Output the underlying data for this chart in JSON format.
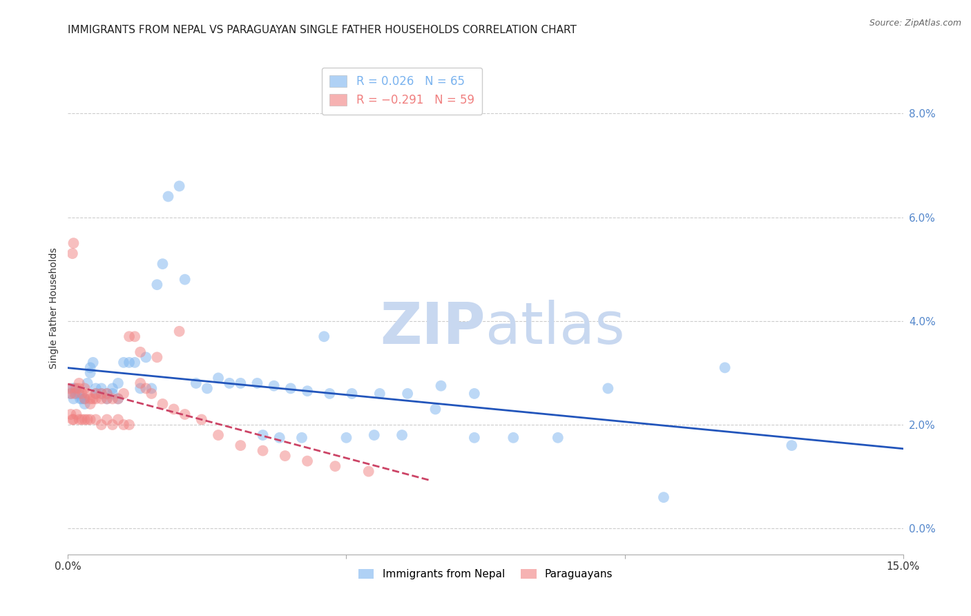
{
  "title": "IMMIGRANTS FROM NEPAL VS PARAGUAYAN SINGLE FATHER HOUSEHOLDS CORRELATION CHART",
  "source": "Source: ZipAtlas.com",
  "ylabel": "Single Father Households",
  "xlim": [
    0.0,
    0.15
  ],
  "ylim": [
    -0.005,
    0.09
  ],
  "yticks": [
    0.0,
    0.02,
    0.04,
    0.06,
    0.08
  ],
  "nepal_color": "#7ab3ef",
  "paraguay_color": "#f08080",
  "nepal_R": 0.026,
  "nepal_N": 65,
  "paraguay_R": -0.291,
  "paraguay_N": 59,
  "nepal_x": [
    0.0005,
    0.0008,
    0.001,
    0.0012,
    0.0015,
    0.002,
    0.0022,
    0.0025,
    0.003,
    0.003,
    0.0035,
    0.004,
    0.004,
    0.0045,
    0.005,
    0.005,
    0.006,
    0.006,
    0.007,
    0.007,
    0.008,
    0.008,
    0.009,
    0.009,
    0.01,
    0.011,
    0.012,
    0.013,
    0.014,
    0.015,
    0.016,
    0.017,
    0.018,
    0.02,
    0.021,
    0.023,
    0.025,
    0.027,
    0.029,
    0.031,
    0.034,
    0.037,
    0.04,
    0.043,
    0.047,
    0.051,
    0.056,
    0.061,
    0.067,
    0.073,
    0.035,
    0.038,
    0.042,
    0.046,
    0.05,
    0.055,
    0.06,
    0.066,
    0.073,
    0.08,
    0.088,
    0.097,
    0.107,
    0.118,
    0.13
  ],
  "nepal_y": [
    0.026,
    0.027,
    0.025,
    0.027,
    0.026,
    0.026,
    0.025,
    0.025,
    0.025,
    0.024,
    0.028,
    0.03,
    0.031,
    0.032,
    0.027,
    0.026,
    0.027,
    0.026,
    0.026,
    0.025,
    0.027,
    0.026,
    0.028,
    0.025,
    0.032,
    0.032,
    0.032,
    0.027,
    0.033,
    0.027,
    0.047,
    0.051,
    0.064,
    0.066,
    0.048,
    0.028,
    0.027,
    0.029,
    0.028,
    0.028,
    0.028,
    0.0275,
    0.027,
    0.0265,
    0.026,
    0.026,
    0.026,
    0.026,
    0.0275,
    0.026,
    0.018,
    0.0175,
    0.0175,
    0.037,
    0.0175,
    0.018,
    0.018,
    0.023,
    0.0175,
    0.0175,
    0.0175,
    0.027,
    0.006,
    0.031,
    0.016
  ],
  "paraguay_x": [
    0.0003,
    0.0005,
    0.0008,
    0.001,
    0.0012,
    0.0015,
    0.002,
    0.002,
    0.0025,
    0.003,
    0.003,
    0.0035,
    0.004,
    0.004,
    0.0045,
    0.005,
    0.005,
    0.006,
    0.006,
    0.007,
    0.007,
    0.008,
    0.009,
    0.01,
    0.011,
    0.012,
    0.013,
    0.014,
    0.015,
    0.017,
    0.019,
    0.021,
    0.024,
    0.027,
    0.031,
    0.035,
    0.039,
    0.043,
    0.048,
    0.054,
    0.0005,
    0.0008,
    0.001,
    0.0015,
    0.002,
    0.0025,
    0.003,
    0.0035,
    0.004,
    0.005,
    0.006,
    0.007,
    0.008,
    0.009,
    0.01,
    0.011,
    0.013,
    0.016,
    0.02
  ],
  "paraguay_y": [
    0.027,
    0.026,
    0.053,
    0.055,
    0.026,
    0.027,
    0.028,
    0.027,
    0.026,
    0.027,
    0.025,
    0.026,
    0.025,
    0.024,
    0.025,
    0.026,
    0.025,
    0.026,
    0.025,
    0.026,
    0.025,
    0.025,
    0.025,
    0.026,
    0.037,
    0.037,
    0.028,
    0.027,
    0.026,
    0.024,
    0.023,
    0.022,
    0.021,
    0.018,
    0.016,
    0.015,
    0.014,
    0.013,
    0.012,
    0.011,
    0.022,
    0.021,
    0.021,
    0.022,
    0.021,
    0.021,
    0.021,
    0.021,
    0.021,
    0.021,
    0.02,
    0.021,
    0.02,
    0.021,
    0.02,
    0.02,
    0.034,
    0.033,
    0.038
  ],
  "background_color": "#ffffff",
  "grid_color": "#cccccc",
  "title_fontsize": 11,
  "axis_label_fontsize": 10,
  "tick_fontsize": 11,
  "source_fontsize": 9,
  "watermark_zip": "ZIP",
  "watermark_atlas": "atlas",
  "watermark_color": "#c8d8f0"
}
